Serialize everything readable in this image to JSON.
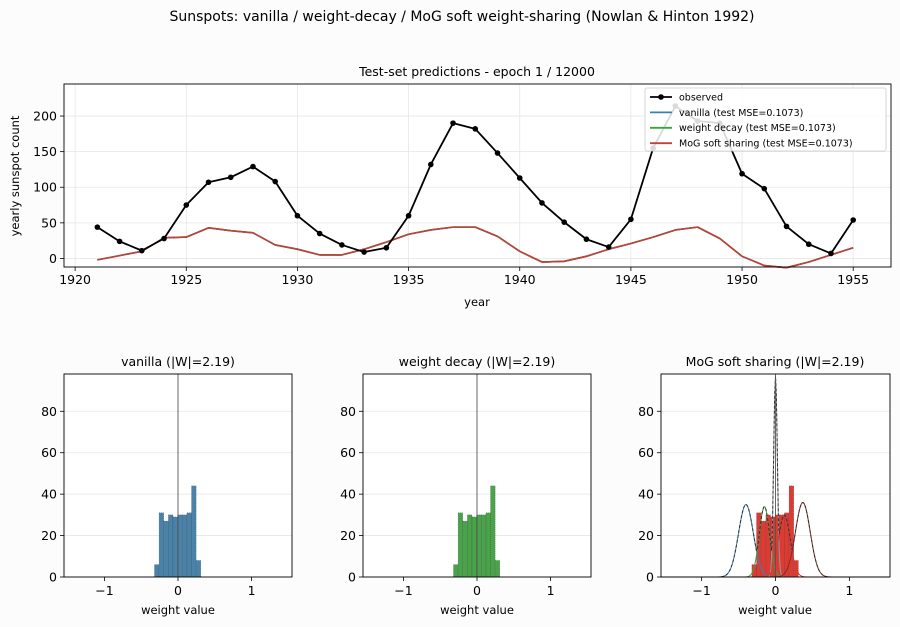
{
  "figure": {
    "suptitle": "Sunspots: vanilla / weight-decay / MoG soft weight-sharing  (Nowlan & Hinton 1992)"
  },
  "chart_data": [
    {
      "type": "line",
      "title": "Test-set predictions  -  epoch 1 / 12000",
      "xlabel": "year",
      "ylabel": "yearly sunspot count",
      "xlim": [
        1919.5,
        1956.7
      ],
      "ylim": [
        -12,
        245
      ],
      "xticks": [
        1920,
        1925,
        1930,
        1935,
        1940,
        1945,
        1950,
        1955
      ],
      "yticks": [
        0,
        50,
        100,
        150,
        200
      ],
      "grid": true,
      "legend_position": "top-right",
      "x": [
        1921,
        1922,
        1923,
        1924,
        1925,
        1926,
        1927,
        1928,
        1929,
        1930,
        1931,
        1932,
        1933,
        1934,
        1935,
        1936,
        1937,
        1938,
        1939,
        1940,
        1941,
        1942,
        1943,
        1944,
        1945,
        1946,
        1947,
        1948,
        1949,
        1950,
        1951,
        1952,
        1953,
        1954,
        1955
      ],
      "series": [
        {
          "name": "observed",
          "color": "#000000",
          "marker": "circle",
          "values": [
            44,
            24,
            11,
            28,
            75,
            107,
            114,
            129,
            108,
            60,
            35,
            19,
            9,
            15,
            60,
            132,
            190,
            182,
            148,
            113,
            78,
            51,
            27,
            16,
            55,
            155,
            214,
            193,
            190,
            119,
            98,
            45,
            20,
            7,
            54
          ]
        },
        {
          "name": "vanilla  (test MSE=0.1073)",
          "color": "#3a7fb4",
          "values": [
            -2,
            4,
            10,
            29,
            30,
            43,
            39,
            36,
            19,
            13,
            5,
            5,
            13,
            23,
            34,
            40,
            44,
            44,
            31,
            10,
            -5,
            -4,
            3,
            13,
            21,
            30,
            40,
            44,
            28,
            3,
            -10,
            -13,
            -5,
            5,
            15
          ]
        },
        {
          "name": "weight decay  (test MSE=0.1073)",
          "color": "#3fa23f",
          "values": [
            -2,
            4,
            10,
            29,
            30,
            43,
            39,
            36,
            19,
            13,
            5,
            5,
            13,
            23,
            34,
            40,
            44,
            44,
            31,
            10,
            -5,
            -4,
            3,
            13,
            21,
            30,
            40,
            44,
            28,
            3,
            -10,
            -13,
            -5,
            5,
            15
          ]
        },
        {
          "name": "MoG soft sharing  (test MSE=0.1073)",
          "color": "#c0413b",
          "values": [
            -2,
            4,
            10,
            29,
            30,
            43,
            39,
            36,
            19,
            13,
            5,
            5,
            13,
            23,
            34,
            40,
            44,
            44,
            31,
            10,
            -5,
            -4,
            3,
            13,
            21,
            30,
            40,
            44,
            28,
            3,
            -10,
            -13,
            -5,
            5,
            15
          ]
        }
      ]
    },
    {
      "type": "bar",
      "title": "vanilla  (|W|=2.19)",
      "xlabel": "weight value",
      "xlim": [
        -1.55,
        1.55
      ],
      "ylim": [
        0,
        98
      ],
      "xticks": [
        -1,
        0,
        1
      ],
      "yticks": [
        0,
        20,
        40,
        60,
        80
      ],
      "grid": true,
      "color": "#4a82a8",
      "vline_x": 0,
      "bin_edges": [
        -0.325,
        -0.25,
        -0.2,
        -0.15,
        -0.1,
        -0.05,
        0.0,
        0.05,
        0.1,
        0.15,
        0.2,
        0.25,
        0.3
      ],
      "counts": [
        6,
        31,
        27,
        30,
        29,
        30,
        30,
        31,
        44,
        8,
        0,
        0
      ],
      "counts_note": "bars (bin widths 0.05): 6,31,27,30,29,30,30,31,44,8"
    },
    {
      "type": "bar",
      "title": "weight decay  (|W|=2.19)",
      "xlabel": "weight value",
      "xlim": [
        -1.55,
        1.55
      ],
      "ylim": [
        0,
        98
      ],
      "xticks": [
        -1,
        0,
        1
      ],
      "yticks": [
        0,
        20,
        40,
        60,
        80
      ],
      "grid": true,
      "color": "#4aa24a",
      "vline_x": 0,
      "counts": [
        6,
        31,
        27,
        30,
        29,
        30,
        30,
        31,
        44,
        8
      ]
    },
    {
      "type": "bar",
      "title": "MoG soft sharing  (|W|=2.19)",
      "xlabel": "weight value",
      "xlim": [
        -1.55,
        1.55
      ],
      "ylim": [
        0,
        98
      ],
      "xticks": [
        -1,
        0,
        1
      ],
      "yticks": [
        0,
        20,
        40,
        60,
        80
      ],
      "grid": true,
      "color": "#dc3b34",
      "vline_x": 0,
      "counts": [
        6,
        31,
        27,
        30,
        29,
        30,
        30,
        31,
        44,
        8
      ],
      "mixture_components": [
        {
          "mean": -0.4,
          "peak": 35,
          "color": "#3a7fb4"
        },
        {
          "mean": -0.15,
          "peak": 34,
          "color": "#3fa23f"
        },
        {
          "mean": 0.0,
          "peak": 97,
          "color": "#9a9a9a"
        },
        {
          "mean": 0.12,
          "peak": 30,
          "color": "#c0413b"
        },
        {
          "mean": 0.37,
          "peak": 36,
          "color": "#8b2a24"
        }
      ]
    }
  ]
}
